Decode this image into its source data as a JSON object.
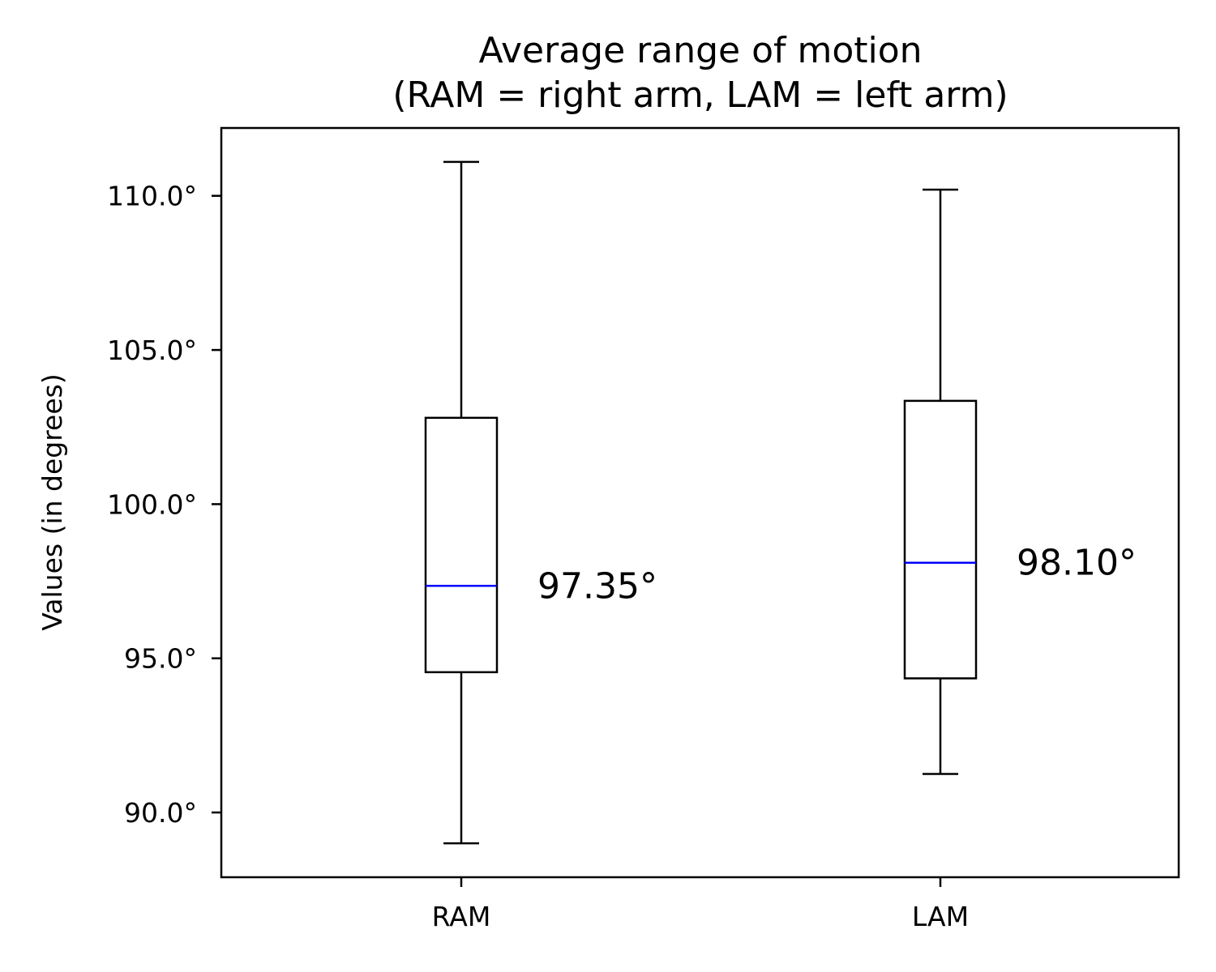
{
  "chart_data": {
    "type": "box",
    "title_line1": "Average range of motion",
    "title_line2": "(RAM = right arm, LAM = left arm)",
    "xlabel": "",
    "ylabel": "Values (in degrees)",
    "ylim": [
      87.9,
      112.2
    ],
    "yticks": [
      90.0,
      95.0,
      100.0,
      105.0,
      110.0
    ],
    "ytick_labels": [
      "90.0°",
      "95.0°",
      "100.0°",
      "105.0°",
      "110.0°"
    ],
    "categories": [
      "RAM",
      "LAM"
    ],
    "boxes": [
      {
        "label": "RAM",
        "whisker_low": 89.0,
        "q1": 94.55,
        "median": 97.35,
        "q3": 102.8,
        "whisker_high": 111.1,
        "median_label": "97.35°"
      },
      {
        "label": "LAM",
        "whisker_low": 91.25,
        "q1": 94.35,
        "median": 98.1,
        "q3": 103.35,
        "whisker_high": 110.2,
        "median_label": "98.10°"
      }
    ],
    "median_color": "#0000ff",
    "box_color": "#000000",
    "grid": false,
    "legend": "none"
  }
}
